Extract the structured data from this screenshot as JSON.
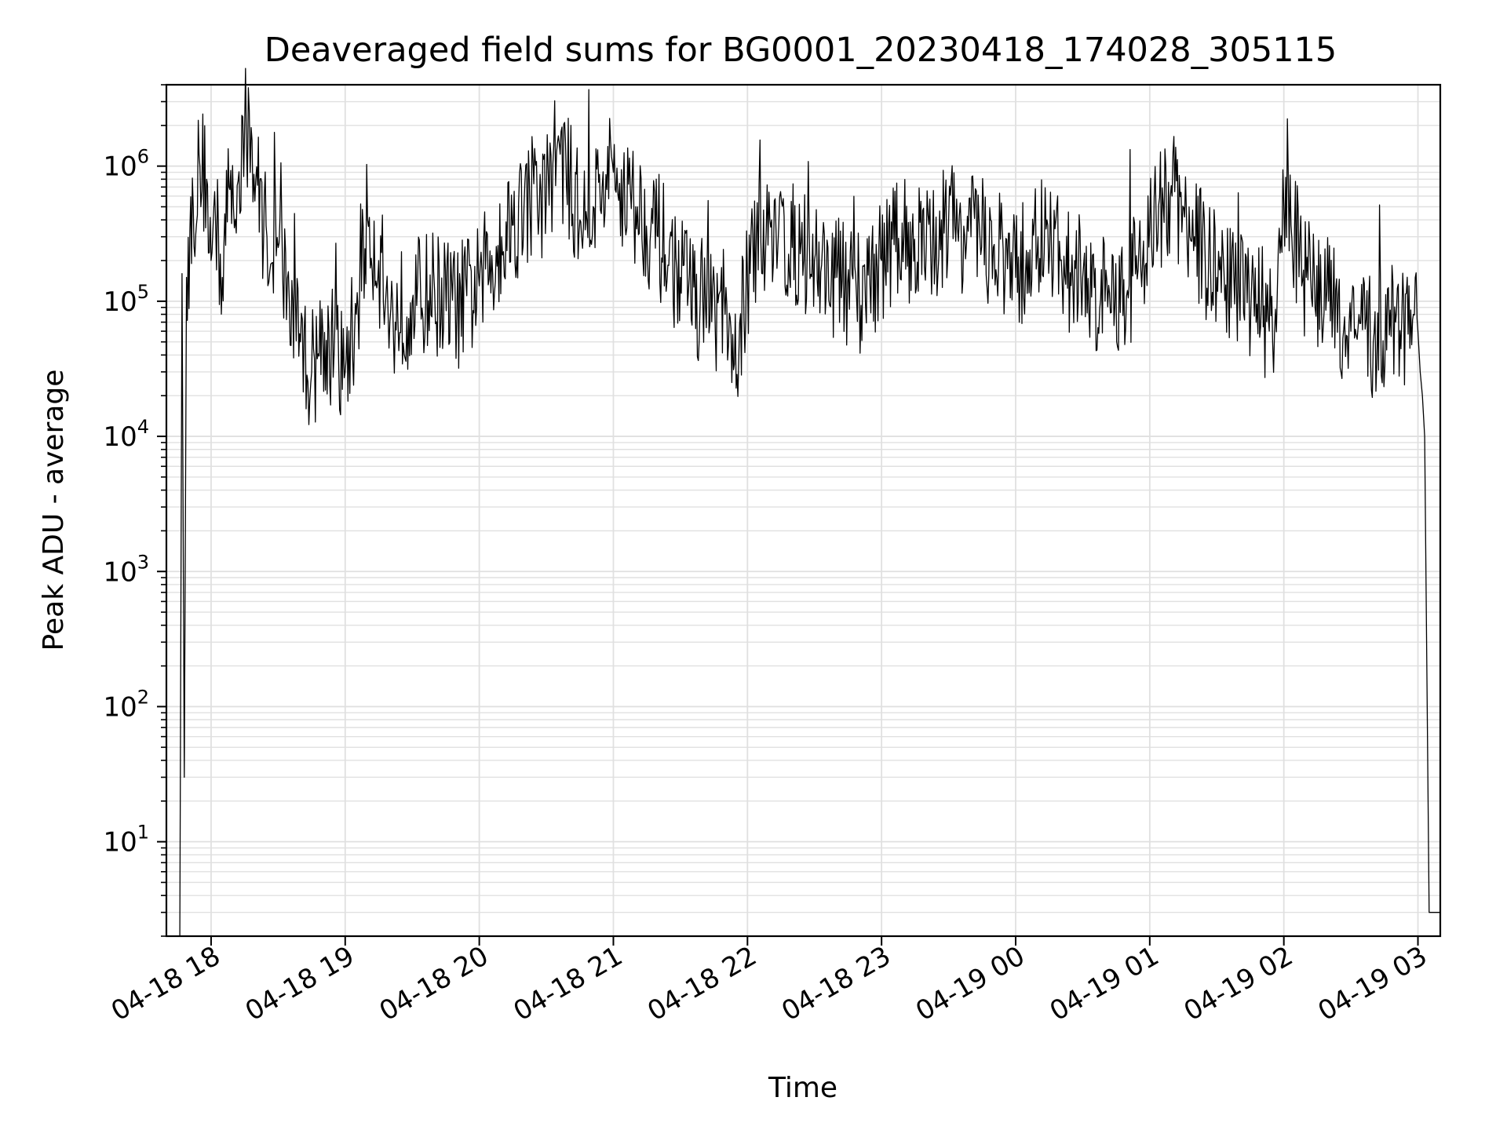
{
  "chart_data": {
    "type": "line",
    "title": "Deaveraged field sums for BG0001_20230418_174028_305115",
    "xlabel": "Time",
    "ylabel": "Peak ADU - average",
    "x_scale": "time",
    "y_scale": "log",
    "xlim": [
      "04-18 17:40",
      "04-19 03:10"
    ],
    "ylim": [
      2,
      4000000
    ],
    "grid": true,
    "line_color": "#000000",
    "grid_color": "#e0e0e0",
    "x_ticks": [
      {
        "label": "04-18 18",
        "hour": 18
      },
      {
        "label": "04-18 19",
        "hour": 19
      },
      {
        "label": "04-18 20",
        "hour": 20
      },
      {
        "label": "04-18 21",
        "hour": 21
      },
      {
        "label": "04-18 22",
        "hour": 22
      },
      {
        "label": "04-18 23",
        "hour": 23
      },
      {
        "label": "04-19 00",
        "hour": 24
      },
      {
        "label": "04-19 01",
        "hour": 25
      },
      {
        "label": "04-19 02",
        "hour": 26
      },
      {
        "label": "04-19 03",
        "hour": 27
      }
    ],
    "y_ticks": [
      {
        "base": "10",
        "exp": "1",
        "value": 10
      },
      {
        "base": "10",
        "exp": "2",
        "value": 100
      },
      {
        "base": "10",
        "exp": "3",
        "value": 1000
      },
      {
        "base": "10",
        "exp": "4",
        "value": 10000
      },
      {
        "base": "10",
        "exp": "5",
        "value": 100000
      },
      {
        "base": "10",
        "exp": "6",
        "value": 1000000
      }
    ],
    "series": [
      {
        "x": [
          "04-18 17:46",
          "04-18 17:47",
          "04-18 17:48",
          "04-18 17:49",
          "04-18 17:52",
          "04-18 17:55",
          "04-18 17:58",
          "04-18 18:00",
          "04-18 18:02",
          "04-18 18:05",
          "04-18 18:08",
          "04-18 18:10",
          "04-18 18:15",
          "04-18 18:20",
          "04-18 18:25",
          "04-18 18:30",
          "04-18 18:35",
          "04-18 18:40",
          "04-18 18:45",
          "04-18 18:50",
          "04-18 18:55",
          "04-18 19:00",
          "04-18 19:05",
          "04-18 19:10",
          "04-18 19:15",
          "04-18 19:20",
          "04-18 19:30",
          "04-18 19:40",
          "04-18 19:50",
          "04-18 20:00",
          "04-18 20:10",
          "04-18 20:20",
          "04-18 20:30",
          "04-18 20:35",
          "04-18 20:45",
          "04-18 20:55",
          "04-18 21:00",
          "04-18 21:10",
          "04-18 21:20",
          "04-18 21:30",
          "04-18 21:40",
          "04-18 21:50",
          "04-18 21:53",
          "04-18 22:00",
          "04-18 22:10",
          "04-18 22:20",
          "04-18 22:30",
          "04-18 22:40",
          "04-18 22:50",
          "04-18 23:00",
          "04-18 23:10",
          "04-18 23:20",
          "04-18 23:30",
          "04-18 23:40",
          "04-18 23:50",
          "04-19 00:00",
          "04-19 00:10",
          "04-19 00:20",
          "04-19 00:30",
          "04-19 00:40",
          "04-19 00:50",
          "04-19 01:00",
          "04-19 01:10",
          "04-19 01:20",
          "04-19 01:30",
          "04-19 01:40",
          "04-19 01:50",
          "04-19 01:55",
          "04-19 02:00",
          "04-19 02:10",
          "04-19 02:20",
          "04-19 02:30",
          "04-19 02:40",
          "04-19 02:50",
          "04-19 02:58",
          "04-19 03:00",
          "04-19 03:01",
          "04-19 03:02",
          "04-19 03:03",
          "04-19 03:05",
          "04-19 03:10"
        ],
        "y": [
          2,
          160000,
          30,
          150000,
          500000,
          1000000,
          800000,
          200000,
          400000,
          150000,
          700000,
          500000,
          2000000,
          800000,
          300000,
          250000,
          100000,
          50000,
          30000,
          60000,
          40000,
          30000,
          80000,
          400000,
          200000,
          70000,
          100000,
          120000,
          90000,
          130000,
          300000,
          500000,
          600000,
          1500000,
          400000,
          700000,
          900000,
          500000,
          300000,
          150000,
          100000,
          80000,
          25000,
          150000,
          400000,
          250000,
          200000,
          150000,
          120000,
          200000,
          300000,
          250000,
          400000,
          300000,
          250000,
          150000,
          300000,
          200000,
          150000,
          100000,
          120000,
          350000,
          600000,
          300000,
          150000,
          120000,
          100000,
          50000,
          500000,
          150000,
          100000,
          60000,
          50000,
          70000,
          80000,
          60000,
          30000,
          20000,
          10000,
          3,
          3
        ]
      }
    ]
  }
}
